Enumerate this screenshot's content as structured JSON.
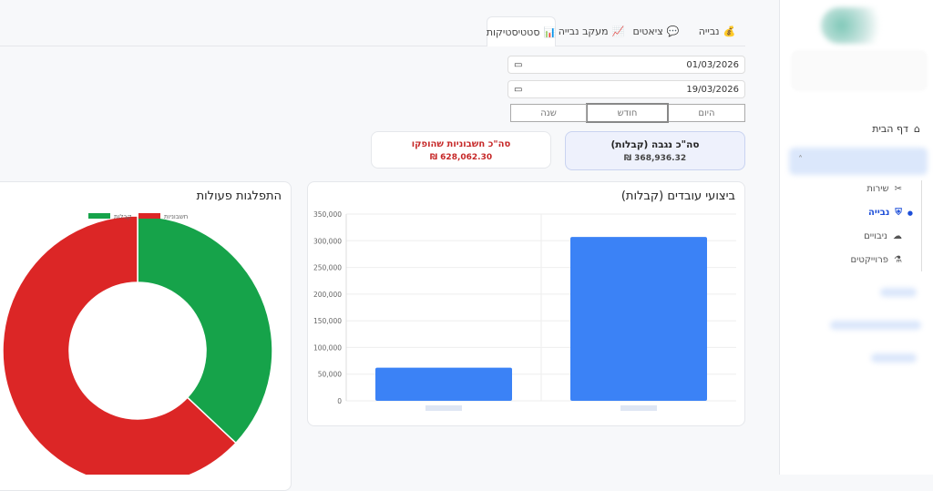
{
  "sidebar": {
    "home": "דף הבית",
    "items": [
      {
        "label": "שירות",
        "icon": "tools-icon"
      },
      {
        "label": "נבייה",
        "icon": "shield-icon",
        "active": true
      },
      {
        "label": "ניבויים",
        "icon": "cloud-icon"
      },
      {
        "label": "פרוייקטים",
        "icon": "flask-icon"
      }
    ]
  },
  "tabs": [
    {
      "label": "נבייה",
      "icon": "💰"
    },
    {
      "label": "ציאטים",
      "icon": "💬"
    },
    {
      "label": "מעקב נבייה",
      "icon": "📈"
    },
    {
      "label": "סטטיסטיקות",
      "icon": "📊",
      "active": true
    }
  ],
  "filters": {
    "from": "01/03/2026",
    "to": "19/03/2026",
    "periods": [
      "היום",
      "חודש",
      "שנה"
    ],
    "selected": "חודש"
  },
  "summary": {
    "collected_label": "סה\"כ נגבה (קבלות)",
    "collected_value": "368,936.32 ₪",
    "invoices_label": "סה\"כ חשבוניות שהופקו",
    "invoices_value": "628,062.30 ₪"
  },
  "colors": {
    "blue": "#3b82f6",
    "green": "#16a34a",
    "red": "#dc2626"
  },
  "chart_data": [
    {
      "type": "bar",
      "title": "ביצועי עובדים (קבלות)",
      "categories": [
        "",
        ""
      ],
      "values": [
        62000,
        307000
      ],
      "ylim": [
        0,
        350000
      ],
      "yticks": [
        "0",
        "50,000",
        "100,000",
        "150,000",
        "200,000",
        "250,000",
        "300,000",
        "350,000"
      ],
      "grid": true
    },
    {
      "type": "pie",
      "title": "התפלגות פעולות",
      "legend_position": "top",
      "series": [
        {
          "name": "קבלות",
          "value": 368936.32,
          "color": "#16a34a"
        },
        {
          "name": "חשבוניות",
          "value": 628062.3,
          "color": "#dc2626"
        }
      ],
      "donut": true
    }
  ]
}
